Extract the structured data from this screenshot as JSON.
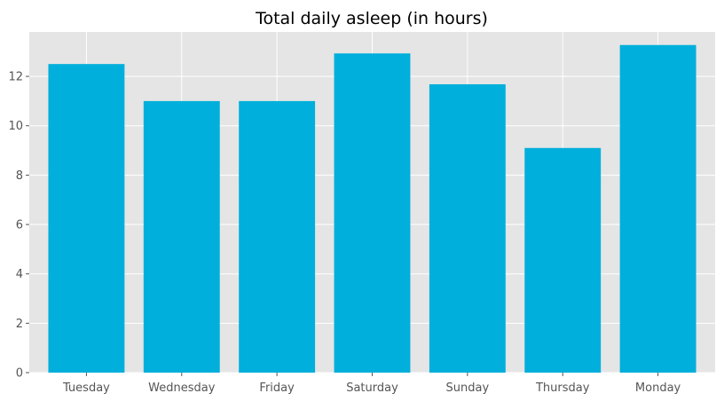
{
  "chart_data": {
    "type": "bar",
    "title": "Total daily asleep (in hours)",
    "xlabel": "",
    "ylabel": "",
    "categories": [
      "Tuesday",
      "Wednesday",
      "Friday",
      "Saturday",
      "Sunday",
      "Thursday",
      "Monday"
    ],
    "values": [
      12.5,
      11.0,
      11.0,
      12.93,
      11.68,
      9.1,
      13.27
    ],
    "ylim": [
      0,
      13.8
    ],
    "yticks": [
      0,
      2,
      4,
      6,
      8,
      10,
      12
    ],
    "grid": true,
    "colors": {
      "bar": "#00afdb",
      "plot_background": "#e5e5e5",
      "grid": "#ffffff"
    }
  }
}
